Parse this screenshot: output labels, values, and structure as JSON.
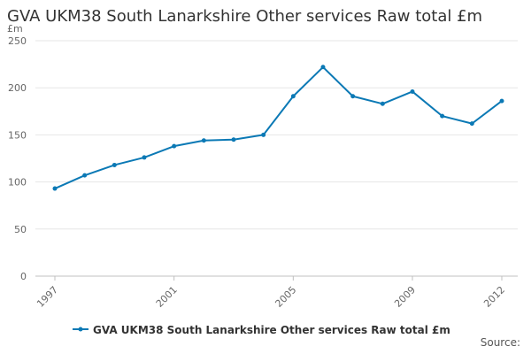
{
  "chart_data": {
    "type": "line",
    "title": "GVA UKM38 South Lanarkshire Other services Raw total £m",
    "ylabel": "£m",
    "xlabel": "",
    "x": [
      1997,
      1998,
      1999,
      2000,
      2001,
      2002,
      2003,
      2004,
      2005,
      2006,
      2007,
      2008,
      2009,
      2010,
      2011,
      2012
    ],
    "x_tick_labels": [
      "1997",
      "2001",
      "2005",
      "2009",
      "2012"
    ],
    "series": [
      {
        "name": "GVA UKM38 South Lanarkshire Other services Raw total £m",
        "values": [
          93,
          107,
          118,
          126,
          138,
          144,
          145,
          150,
          191,
          222,
          191,
          183,
          196,
          170,
          162,
          186
        ]
      }
    ],
    "ylim": [
      0,
      250
    ],
    "yticks": [
      0,
      50,
      100,
      150,
      200,
      250
    ],
    "grid": true,
    "legend_position": "bottom",
    "colors": {
      "series": "#0b79b5",
      "grid": "#e6e6e6",
      "axis": "#c0c0c0"
    }
  },
  "source_label": "Source:"
}
